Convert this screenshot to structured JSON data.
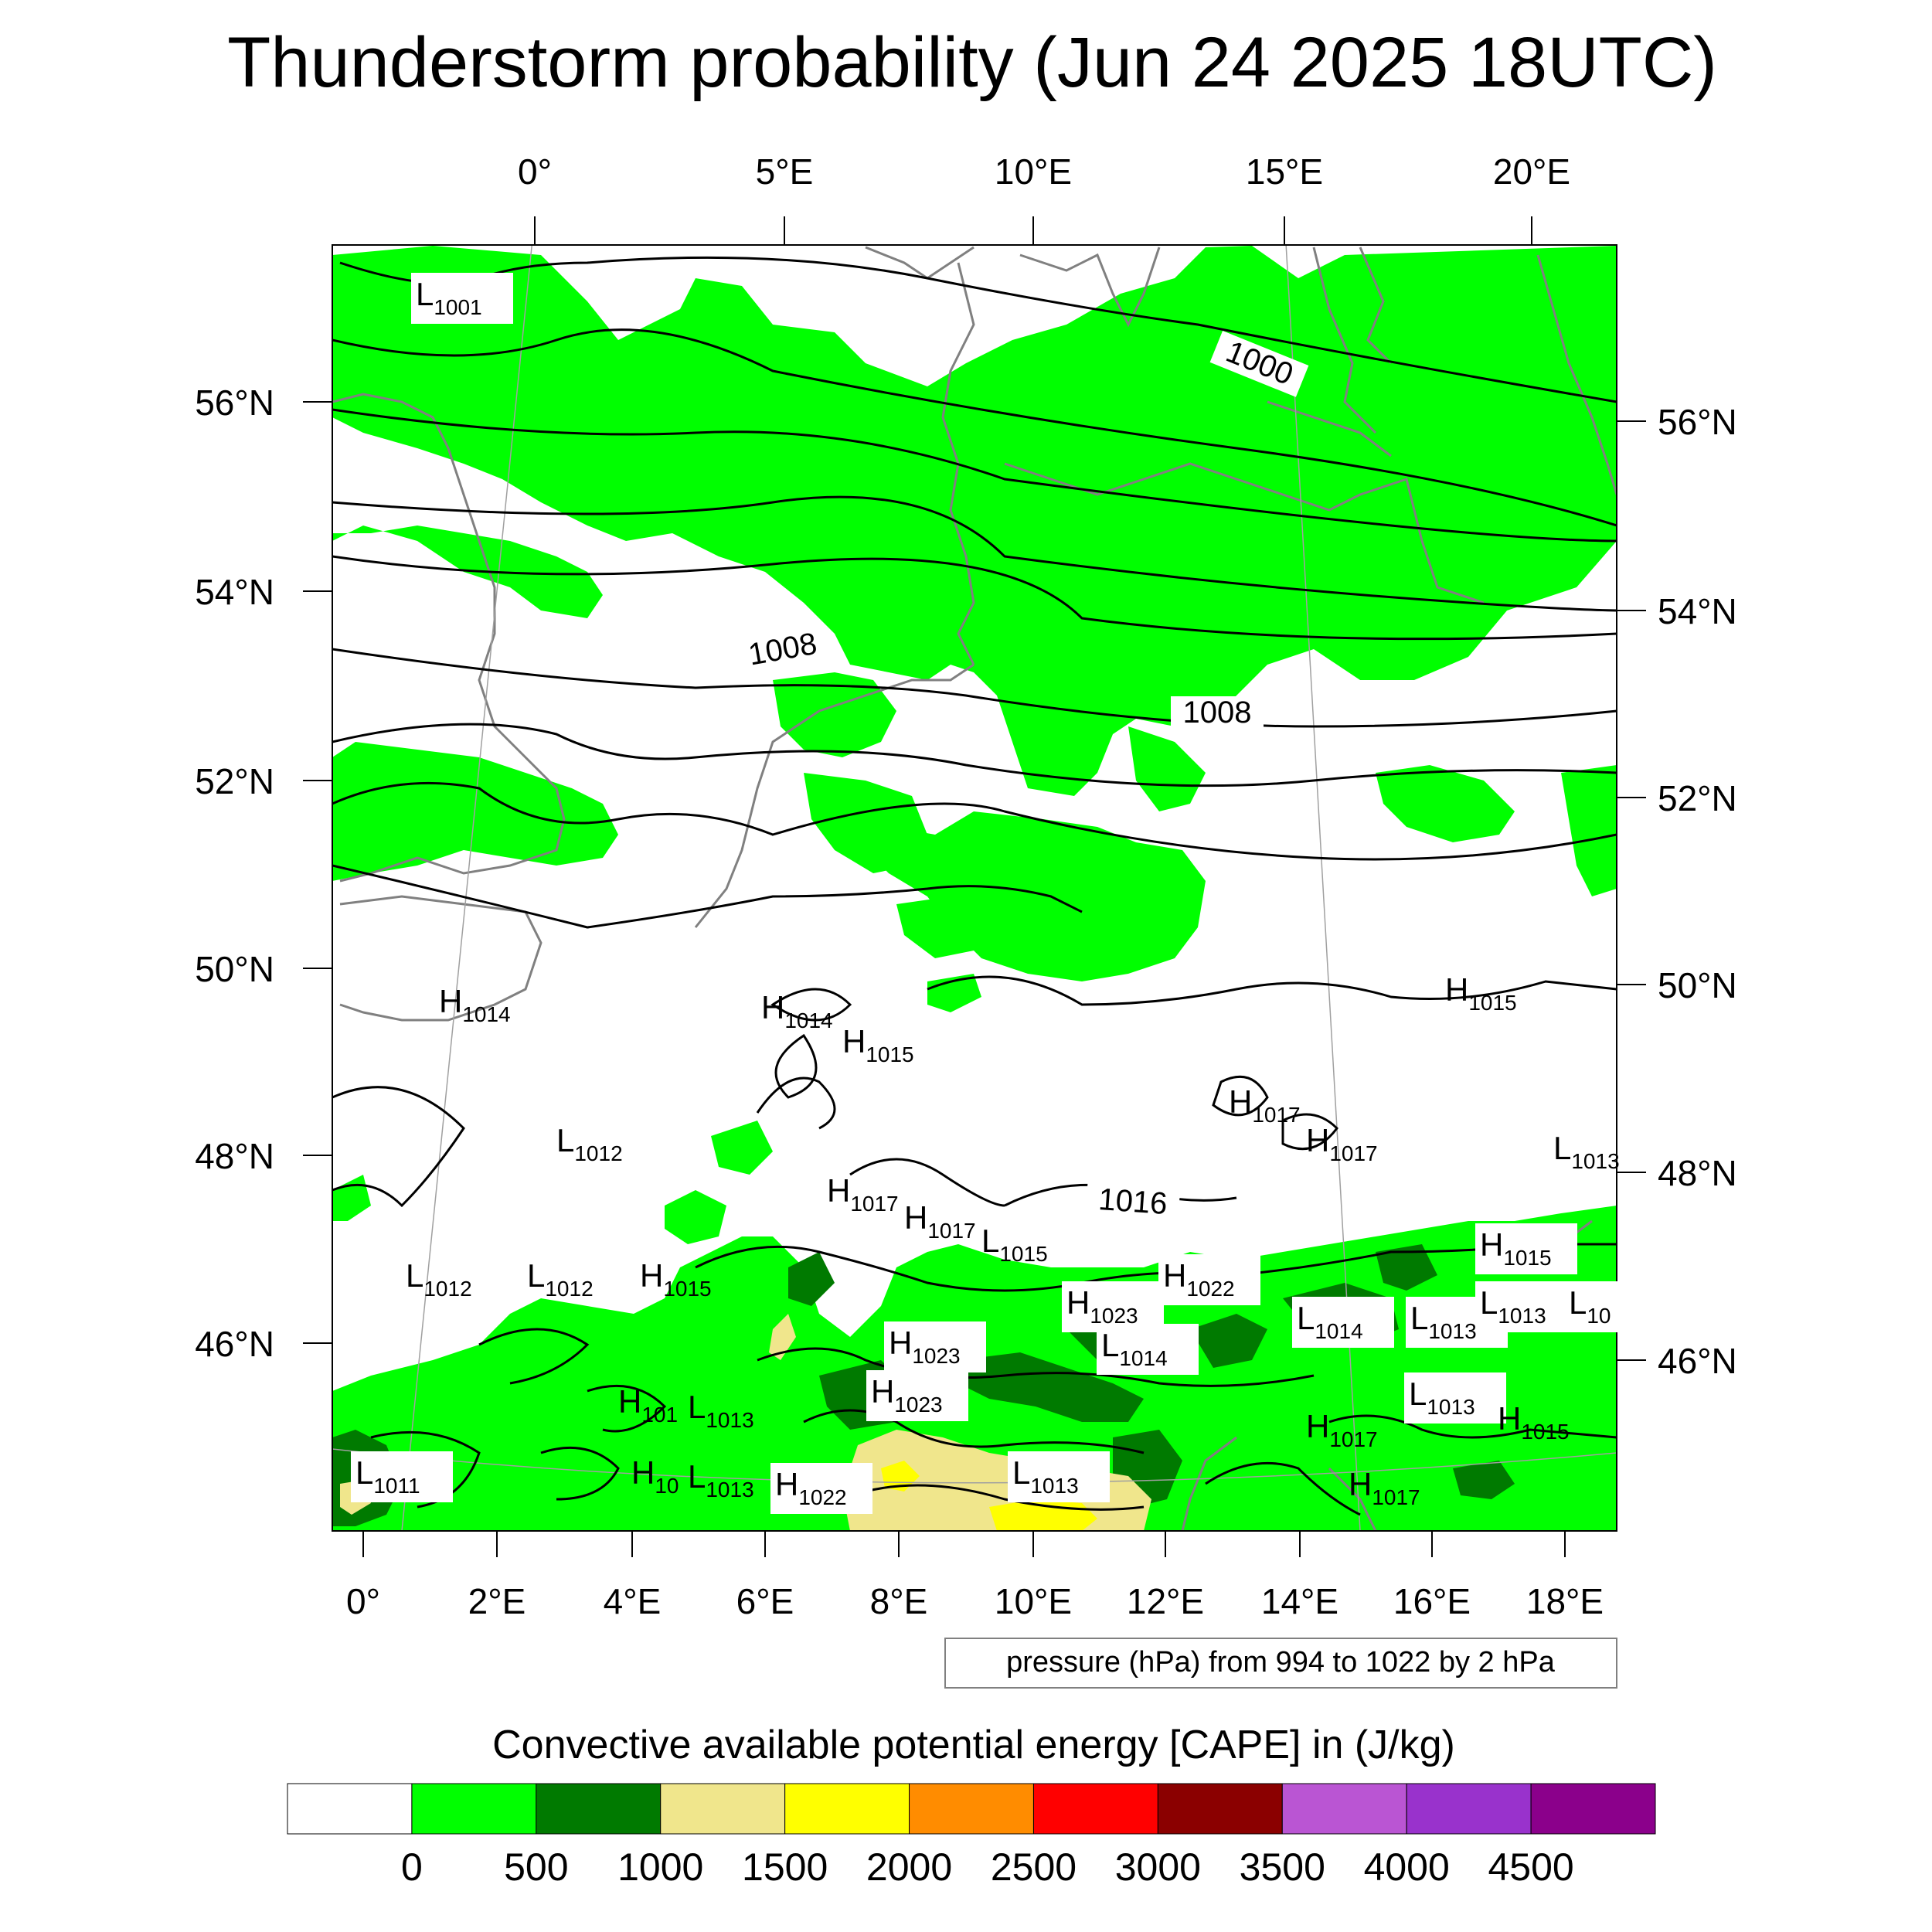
{
  "title": "Thunderstorm probability (Jun 24 2025 18UTC)",
  "top_lon_labels": [
    "0°",
    "5°E",
    "10°E",
    "15°E",
    "20°E"
  ],
  "bottom_lon_labels": [
    "0°",
    "2°E",
    "4°E",
    "6°E",
    "8°E",
    "10°E",
    "12°E",
    "14°E",
    "16°E",
    "18°E"
  ],
  "left_lat_labels": [
    "56°N",
    "54°N",
    "52°N",
    "50°N",
    "48°N",
    "46°N"
  ],
  "right_lat_labels": [
    "56°N",
    "54°N",
    "52°N",
    "50°N",
    "48°N",
    "46°N"
  ],
  "isobar_labels": [
    "1000",
    "1008",
    "1008",
    "1016"
  ],
  "pressure_centers": [
    {
      "t": "L",
      "v": "1001"
    },
    {
      "t": "H",
      "v": "1014"
    },
    {
      "t": "H",
      "v": "1014"
    },
    {
      "t": "H",
      "v": "1015"
    },
    {
      "t": "H",
      "v": "1015"
    },
    {
      "t": "L",
      "v": "1012"
    },
    {
      "t": "H",
      "v": "1017"
    },
    {
      "t": "H",
      "v": "1017"
    },
    {
      "t": "H",
      "v": "1017"
    },
    {
      "t": "H",
      "v": "1017"
    },
    {
      "t": "L",
      "v": "1013"
    },
    {
      "t": "L",
      "v": "1012"
    },
    {
      "t": "L",
      "v": "1012"
    },
    {
      "t": "H",
      "v": "1015"
    },
    {
      "t": "L",
      "v": "1015"
    },
    {
      "t": "H",
      "v": "1022"
    },
    {
      "t": "H",
      "v": "1023"
    },
    {
      "t": "H",
      "v": "1015"
    },
    {
      "t": "L",
      "v": "1014"
    },
    {
      "t": "L",
      "v": "1013"
    },
    {
      "t": "L",
      "v": "1013"
    },
    {
      "t": "L",
      "v": "10"
    },
    {
      "t": "H",
      "v": "1023"
    },
    {
      "t": "L",
      "v": "1014"
    },
    {
      "t": "H",
      "v": "101"
    },
    {
      "t": "L",
      "v": "1013"
    },
    {
      "t": "H",
      "v": "1023"
    },
    {
      "t": "L",
      "v": "1013"
    },
    {
      "t": "H",
      "v": "1017"
    },
    {
      "t": "H",
      "v": "1015"
    },
    {
      "t": "L",
      "v": "1011"
    },
    {
      "t": "H",
      "v": "10"
    },
    {
      "t": "L",
      "v": "1013"
    },
    {
      "t": "H",
      "v": "1022"
    },
    {
      "t": "L",
      "v": "1013"
    },
    {
      "t": "H",
      "v": "1017"
    }
  ],
  "pressure_note": "pressure (hPa) from 994 to 1022 by 2 hPa",
  "colorbar_title": "Convective available potential energy [CAPE] in (J/kg)",
  "colorbar_ticks": [
    "0",
    "500",
    "1000",
    "1500",
    "2000",
    "2500",
    "3000",
    "3500",
    "4000",
    "4500"
  ],
  "colorbar_colors": [
    "#ffffff",
    "#00ff00",
    "#007a00",
    "#f0e68c",
    "#ffff00",
    "#ff8c00",
    "#ff0000",
    "#8b0000",
    "#ba55d3",
    "#9932cc",
    "#8b008b"
  ],
  "colors": {
    "cape_light": "#00ff00",
    "cape_dark": "#007a00",
    "cape_khaki": "#f0e68c",
    "cape_yellow": "#ffff00",
    "coastline": "#808080",
    "isobar": "#000000"
  }
}
